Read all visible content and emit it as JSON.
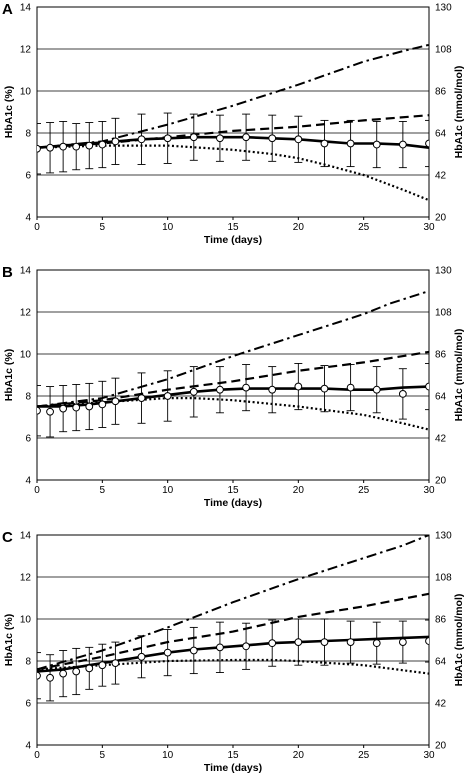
{
  "chart_data": [
    {
      "panel": "A",
      "type": "line",
      "xlabel": "Time (days)",
      "ylabel_left": "HbA1c (%)",
      "ylabel_right": "HbA1c (mmol/mol)",
      "xlim": [
        0,
        30
      ],
      "ylim": [
        4,
        14
      ],
      "x_ticks": [
        "0",
        "5",
        "10",
        "15",
        "20",
        "25",
        "30"
      ],
      "y_ticks_left": [
        "4",
        "6",
        "8",
        "10",
        "12",
        "14"
      ],
      "y_ticks_right": [
        "20",
        "42",
        "64",
        "86",
        "108",
        "130"
      ],
      "grid": "horizontal",
      "series": [
        {
          "style": "solid",
          "x": [
            0,
            2,
            4,
            6,
            8,
            10,
            12,
            14,
            16,
            18,
            20,
            22,
            24,
            26,
            28,
            30
          ],
          "y": [
            7.3,
            7.4,
            7.5,
            7.6,
            7.7,
            7.75,
            7.8,
            7.8,
            7.8,
            7.75,
            7.7,
            7.6,
            7.5,
            7.5,
            7.45,
            7.3
          ]
        },
        {
          "style": "dashed",
          "x": [
            0,
            5,
            10,
            15,
            20,
            25,
            30
          ],
          "y": [
            7.3,
            7.5,
            7.8,
            8.1,
            8.3,
            8.6,
            8.85
          ]
        },
        {
          "style": "dashdot",
          "x": [
            0,
            5,
            10,
            15,
            20,
            25,
            28,
            30
          ],
          "y": [
            7.3,
            7.6,
            8.4,
            9.3,
            10.3,
            11.4,
            11.9,
            12.2
          ]
        },
        {
          "style": "dotted",
          "x": [
            0,
            5,
            10,
            15,
            18,
            20,
            22,
            25,
            28,
            30
          ],
          "y": [
            7.3,
            7.4,
            7.4,
            7.2,
            7.0,
            6.8,
            6.5,
            6.0,
            5.3,
            4.8
          ]
        },
        {
          "style": "markers",
          "x": [
            0,
            1,
            2,
            3,
            4,
            5,
            6,
            8,
            10,
            12,
            14,
            16,
            18,
            20,
            22,
            24,
            26,
            28,
            30
          ],
          "y": [
            7.25,
            7.3,
            7.35,
            7.35,
            7.4,
            7.45,
            7.6,
            7.7,
            7.75,
            7.8,
            7.75,
            7.8,
            7.75,
            7.7,
            7.5,
            7.5,
            7.45,
            7.45,
            7.5
          ],
          "err": [
            1.2,
            1.2,
            1.2,
            1.1,
            1.1,
            1.1,
            1.1,
            1.2,
            1.2,
            1.1,
            1.1,
            1.1,
            1.1,
            1.1,
            1.1,
            1.1,
            1.1,
            1.1,
            1.1
          ]
        }
      ]
    },
    {
      "panel": "B",
      "type": "line",
      "xlabel": "Time (days)",
      "ylabel_left": "HbA1c (%)",
      "ylabel_right": "HbA1c (mmol/mol)",
      "xlim": [
        0,
        30
      ],
      "ylim": [
        4,
        14
      ],
      "x_ticks": [
        "0",
        "5",
        "10",
        "15",
        "20",
        "25",
        "30"
      ],
      "y_ticks_left": [
        "4",
        "6",
        "8",
        "10",
        "12",
        "14"
      ],
      "y_ticks_right": [
        "20",
        "42",
        "64",
        "86",
        "108",
        "130"
      ],
      "grid": "horizontal",
      "series": [
        {
          "style": "solid",
          "x": [
            0,
            2,
            4,
            6,
            8,
            10,
            12,
            14,
            16,
            18,
            20,
            22,
            24,
            26,
            28,
            30
          ],
          "y": [
            7.5,
            7.5,
            7.6,
            7.75,
            7.9,
            8.05,
            8.2,
            8.3,
            8.35,
            8.35,
            8.35,
            8.35,
            8.3,
            8.3,
            8.4,
            8.45
          ]
        },
        {
          "style": "dashed",
          "x": [
            0,
            5,
            10,
            15,
            20,
            25,
            30
          ],
          "y": [
            7.5,
            7.8,
            8.3,
            8.7,
            9.2,
            9.6,
            10.1
          ]
        },
        {
          "style": "dashdot",
          "x": [
            0,
            5,
            10,
            15,
            20,
            25,
            27,
            30
          ],
          "y": [
            7.5,
            7.9,
            8.8,
            9.9,
            10.9,
            11.9,
            12.4,
            13.0
          ]
        },
        {
          "style": "dotted",
          "x": [
            0,
            5,
            10,
            12,
            15,
            20,
            25,
            28,
            30
          ],
          "y": [
            7.5,
            7.7,
            7.9,
            7.9,
            7.8,
            7.5,
            7.1,
            6.7,
            6.4
          ]
        },
        {
          "style": "markers",
          "x": [
            0,
            1,
            2,
            3,
            4,
            5,
            6,
            8,
            10,
            12,
            14,
            16,
            18,
            20,
            22,
            24,
            26,
            28,
            30
          ],
          "y": [
            7.3,
            7.25,
            7.4,
            7.45,
            7.5,
            7.6,
            7.75,
            7.9,
            8.0,
            8.2,
            8.3,
            8.4,
            8.3,
            8.45,
            8.35,
            8.4,
            8.3,
            8.1,
            8.45
          ],
          "err": [
            1.2,
            1.2,
            1.1,
            1.1,
            1.1,
            1.1,
            1.1,
            1.2,
            1.2,
            1.2,
            1.1,
            1.1,
            1.1,
            1.1,
            1.1,
            1.1,
            1.1,
            1.2,
            1.1
          ]
        }
      ]
    },
    {
      "panel": "C",
      "type": "line",
      "xlabel": "Time (days)",
      "ylabel_left": "HbA1c (%)",
      "ylabel_right": "HbA1c (mmol/mol)",
      "xlim": [
        0,
        30
      ],
      "ylim": [
        4,
        14
      ],
      "x_ticks": [
        "0",
        "5",
        "10",
        "15",
        "20",
        "25",
        "30"
      ],
      "y_ticks_left": [
        "4",
        "6",
        "8",
        "10",
        "12",
        "14"
      ],
      "y_ticks_right": [
        "20",
        "42",
        "64",
        "86",
        "108",
        "130"
      ],
      "grid": "horizontal",
      "series": [
        {
          "style": "solid",
          "x": [
            0,
            2,
            4,
            6,
            8,
            10,
            12,
            14,
            16,
            18,
            20,
            22,
            24,
            26,
            28,
            30
          ],
          "y": [
            7.5,
            7.6,
            7.8,
            8.0,
            8.2,
            8.4,
            8.55,
            8.65,
            8.75,
            8.85,
            8.9,
            8.95,
            9.0,
            9.05,
            9.1,
            9.15
          ]
        },
        {
          "style": "dashed",
          "x": [
            0,
            5,
            10,
            15,
            20,
            25,
            30
          ],
          "y": [
            7.6,
            8.2,
            8.9,
            9.4,
            10.1,
            10.6,
            11.2
          ]
        },
        {
          "style": "dashdot",
          "x": [
            0,
            5,
            10,
            15,
            20,
            25,
            28,
            30
          ],
          "y": [
            7.6,
            8.5,
            9.6,
            10.8,
            11.9,
            12.9,
            13.5,
            14.0
          ]
        },
        {
          "style": "dotted",
          "x": [
            0,
            5,
            10,
            15,
            18,
            20,
            25,
            30
          ],
          "y": [
            7.6,
            7.8,
            8.0,
            8.05,
            8.05,
            8.0,
            7.8,
            7.4
          ]
        },
        {
          "style": "markers",
          "x": [
            0,
            1,
            2,
            3,
            4,
            5,
            6,
            8,
            10,
            12,
            14,
            16,
            18,
            20,
            22,
            24,
            26,
            28,
            30
          ],
          "y": [
            7.3,
            7.2,
            7.4,
            7.5,
            7.65,
            7.8,
            7.9,
            8.2,
            8.4,
            8.5,
            8.65,
            8.7,
            8.85,
            8.9,
            8.9,
            8.9,
            8.85,
            8.9,
            8.95
          ],
          "err": [
            1.1,
            1.1,
            1.1,
            1.1,
            1.0,
            1.0,
            1.0,
            1.0,
            1.1,
            1.1,
            1.2,
            1.1,
            1.1,
            1.1,
            1.1,
            1.0,
            1.0,
            1.0,
            1.0
          ]
        }
      ]
    }
  ]
}
